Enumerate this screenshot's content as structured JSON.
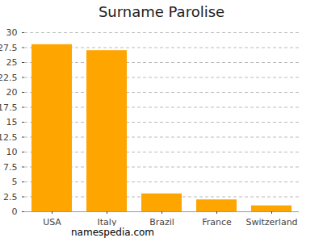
{
  "chart_data": {
    "type": "bar",
    "title": "Surname Parolise",
    "caption": "namespedia.com",
    "categories": [
      "USA",
      "Italy",
      "Brazil",
      "France",
      "Switzerland"
    ],
    "values": [
      28,
      27,
      3,
      2,
      1
    ],
    "color": "#ffa500",
    "ylim": [
      0,
      30
    ],
    "yticks": [
      0,
      2.5,
      5,
      7.5,
      10,
      12.5,
      15,
      17.5,
      20,
      22.5,
      25,
      27.5,
      30
    ],
    "grid": true
  }
}
